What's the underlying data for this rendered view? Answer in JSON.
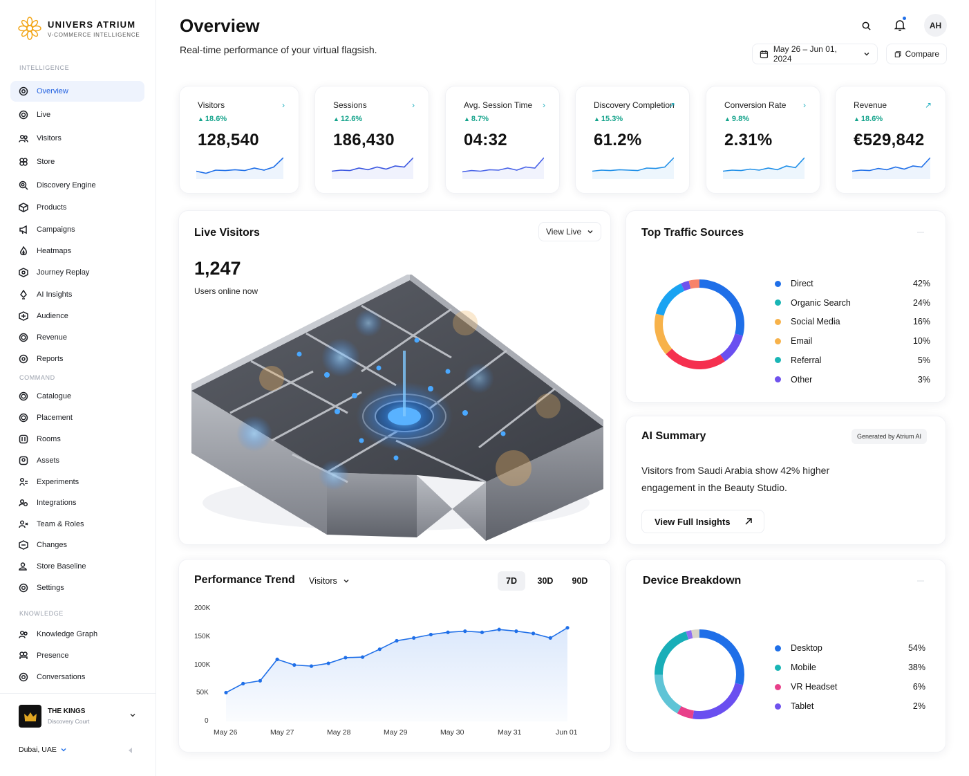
{
  "brand": {
    "name": "UNIVERS ATRIUM",
    "tagline": "V-COMMERCE INTELLIGENCE"
  },
  "sidebar": {
    "sections": [
      {
        "label": "INTELLIGENCE",
        "items": [
          {
            "label": "Overview",
            "icon": "target-icon",
            "active": true
          },
          {
            "label": "Live",
            "icon": "live-icon"
          },
          {
            "label": "Visitors",
            "icon": "users-icon"
          },
          {
            "label": "Store",
            "icon": "store-icon"
          },
          {
            "label": "Discovery Engine",
            "icon": "search-icon"
          },
          {
            "label": "Products",
            "icon": "box-icon"
          },
          {
            "label": "Campaigns",
            "icon": "megaphone-icon"
          },
          {
            "label": "Heatmaps",
            "icon": "flame-icon"
          },
          {
            "label": "Journey Replay",
            "icon": "replay-icon"
          },
          {
            "label": "AI Insights",
            "icon": "bulb-icon"
          },
          {
            "label": "Audience",
            "icon": "audience-icon"
          },
          {
            "label": "Revenue",
            "icon": "revenue-icon"
          },
          {
            "label": "Reports",
            "icon": "report-icon"
          }
        ]
      },
      {
        "label": "COMMAND",
        "items": [
          {
            "label": "Catalogue",
            "icon": "catalogue-icon"
          },
          {
            "label": "Placement",
            "icon": "placement-icon"
          },
          {
            "label": "Rooms",
            "icon": "rooms-icon"
          },
          {
            "label": "Assets",
            "icon": "assets-icon"
          },
          {
            "label": "Experiments",
            "icon": "flask-icon"
          },
          {
            "label": "Integrations",
            "icon": "plug-icon"
          },
          {
            "label": "Team & Roles",
            "icon": "team-icon"
          },
          {
            "label": "Changes",
            "icon": "changes-icon"
          },
          {
            "label": "Store Baseline",
            "icon": "baseline-icon"
          },
          {
            "label": "Settings",
            "icon": "gear-icon"
          }
        ]
      },
      {
        "label": "KNOWLEDGE",
        "items": [
          {
            "label": "Knowledge Graph",
            "icon": "graph-icon"
          },
          {
            "label": "Presence",
            "icon": "presence-icon"
          },
          {
            "label": "Conversations",
            "icon": "chat-icon"
          }
        ]
      }
    ],
    "store": {
      "name": "THE KINGS",
      "sub": "Discovery Court"
    },
    "location": "Dubai, UAE"
  },
  "header": {
    "title": "Overview",
    "subtitle": "Real-time performance of your virtual flagsish.",
    "avatar_initials": "AH",
    "date_range": "May 26 – Jun 01, 2024",
    "compare_label": "Compare"
  },
  "kpis": [
    {
      "label": "Visitors",
      "delta": "18.6%",
      "value": "128,540",
      "arrow": "›"
    },
    {
      "label": "Sessions",
      "delta": "12.6%",
      "value": "186,430",
      "arrow": "›"
    },
    {
      "label": "Avg. Session Time",
      "delta": "8.7%",
      "value": "04:32",
      "arrow": "›"
    },
    {
      "label": "Discovery Completion",
      "delta": "15.3%",
      "value": "61.2%",
      "arrow": "↗"
    },
    {
      "label": "Conversion Rate",
      "delta": "9.8%",
      "value": "2.31%",
      "arrow": "›"
    },
    {
      "label": "Revenue",
      "delta": "18.6%",
      "value": "€529,842",
      "arrow": "↗"
    }
  ],
  "live": {
    "title": "Live Visitors",
    "button": "View Live",
    "count": "1,247",
    "caption": "Users online now"
  },
  "traffic": {
    "title": "Top Traffic Sources",
    "items": [
      {
        "label": "Direct",
        "value": "42%",
        "pct": 42,
        "color": "#1f6fe8"
      },
      {
        "label": "Organic Search",
        "value": "24%",
        "pct": 24,
        "color": "#19b5b5"
      },
      {
        "label": "Social Media",
        "value": "16%",
        "pct": 16,
        "color": "#f7b24a"
      },
      {
        "label": "Email",
        "value": "10%",
        "pct": 10,
        "color": "#f7b24a"
      },
      {
        "label": "Referral",
        "value": "5%",
        "pct": 5,
        "color": "#19b5b5"
      },
      {
        "label": "Other",
        "value": "3%",
        "pct": 3,
        "color": "#6f52ed"
      }
    ]
  },
  "ai_summary": {
    "title": "AI Summary",
    "badge": "Generated by Atrium AI",
    "text": "Visitors from Saudi Arabia show 42% higher engagement in the Beauty Studio.",
    "button": "View Full Insights"
  },
  "performance": {
    "title": "Performance Trend",
    "metric": "Visitors",
    "ranges": [
      "7D",
      "30D",
      "90D"
    ],
    "active_range": "7D"
  },
  "chart_data": {
    "type": "area",
    "title": "Performance Trend",
    "series": [
      {
        "values": [
          51000,
          67000,
          72000,
          110000,
          100000,
          98000,
          103000,
          113000,
          114000,
          128000,
          143000,
          148000,
          154000,
          158000,
          160000,
          158000,
          163000,
          160000,
          156000,
          148000,
          166000
        ]
      }
    ],
    "x_ticks": [
      "May 26",
      "May 27",
      "May 28",
      "May 29",
      "May 30",
      "May 31",
      "Jun 01"
    ],
    "y_ticks": [
      "200K",
      "150K",
      "100K",
      "50K",
      "0"
    ],
    "ylim": [
      0,
      200000
    ],
    "grid": false
  },
  "device": {
    "title": "Device Breakdown",
    "items": [
      {
        "label": "Desktop",
        "value": "54%",
        "pct": 54,
        "color": "#1f6fe8"
      },
      {
        "label": "Mobile",
        "value": "38%",
        "pct": 38,
        "color": "#19b5b5"
      },
      {
        "label": "VR Headset",
        "value": "6%",
        "pct": 6,
        "color": "#e8408a"
      },
      {
        "label": "Tablet",
        "value": "2%",
        "pct": 2,
        "color": "#6f52ed"
      }
    ]
  }
}
